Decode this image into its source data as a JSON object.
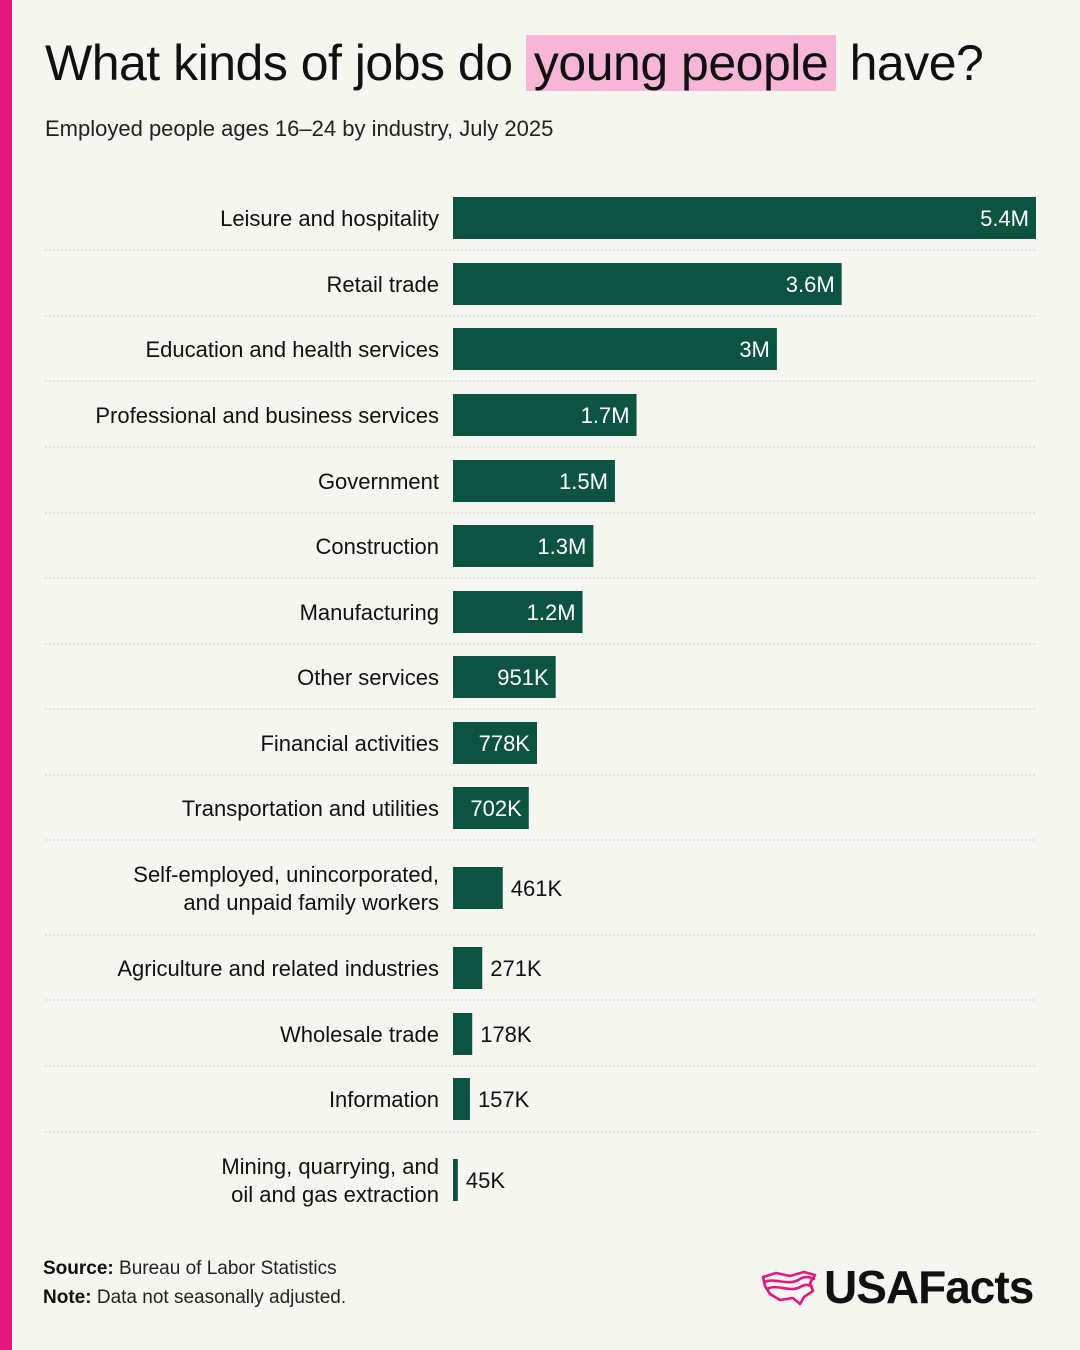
{
  "title": {
    "before": "What kinds of jobs do ",
    "highlight": "young people",
    "after": " have?"
  },
  "subtitle": "Employed people ages 16–24 by industry, July 2025",
  "colors": {
    "accent": "#e5197d",
    "highlight": "#f7b6d6",
    "bar": "#0c5441",
    "background": "#f6f6f1"
  },
  "chart_data": {
    "type": "bar",
    "orientation": "horizontal",
    "categories": [
      "Leisure and hospitality",
      "Retail trade",
      "Education and health services",
      "Professional and business services",
      "Government",
      "Construction",
      "Manufacturing",
      "Other services",
      "Financial activities",
      "Transportation and utilities",
      "Self-employed, unincorporated, and unpaid family workers",
      "Agriculture and related industries",
      "Wholesale trade",
      "Information",
      "Mining, quarrying, and oil and gas extraction"
    ],
    "values": [
      5400000,
      3600000,
      3000000,
      1700000,
      1500000,
      1300000,
      1200000,
      951000,
      778000,
      702000,
      461000,
      271000,
      178000,
      157000,
      45000
    ],
    "value_labels": [
      "5.4M",
      "3.6M",
      "3M",
      "1.7M",
      "1.5M",
      "1.3M",
      "1.2M",
      "951K",
      "778K",
      "702K",
      "461K",
      "271K",
      "178K",
      "157K",
      "45K"
    ],
    "xlim": [
      0,
      5400000
    ]
  },
  "footer": {
    "source_label": "Source:",
    "source_text": "Bureau of Labor Statistics",
    "note_label": "Note:",
    "note_text": "Data not seasonally adjusted."
  },
  "logo": {
    "text": "USAFacts",
    "icon": "usa-flag-map-icon"
  }
}
